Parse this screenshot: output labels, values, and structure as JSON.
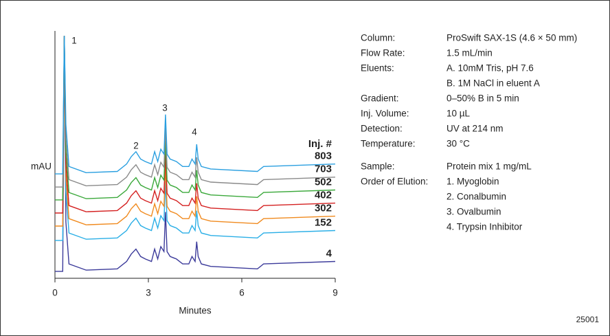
{
  "chart_data": {
    "type": "line",
    "x": [
      0,
      0.25,
      0.3,
      0.35,
      0.45,
      1.0,
      2.0,
      2.3,
      2.45,
      2.6,
      2.75,
      2.9,
      3.1,
      3.2,
      3.3,
      3.4,
      3.5,
      3.55,
      3.6,
      3.7,
      3.9,
      4.1,
      4.3,
      4.4,
      4.5,
      4.55,
      4.6,
      4.7,
      5.0,
      6.5,
      6.7,
      9.0
    ],
    "xlim": [
      0,
      9
    ],
    "xticks": [
      0,
      3,
      6,
      9
    ],
    "ylim": [
      0,
      100
    ],
    "x_label": "Minutes",
    "y_label": "mAU",
    "legend_title": "Inj. #",
    "annotations": [
      "1",
      "2",
      "3",
      "4"
    ],
    "series": [
      {
        "name": "4",
        "color": "#3b3a9a",
        "values": [
          2.8,
          2.8,
          98,
          22.8,
          5.8,
          3.3,
          3.8,
          6.8,
          9.8,
          11.8,
          8.8,
          7.8,
          6.8,
          11.8,
          7.8,
          12.8,
          10.8,
          26.8,
          10.8,
          8.8,
          7.8,
          5.8,
          5.8,
          8.8,
          6.8,
          14.8,
          8.8,
          5.8,
          4.8,
          3.8,
          5.8,
          6.8
        ]
      },
      {
        "name": "152",
        "color": "#29aee6",
        "values": [
          15.3,
          15.3,
          98,
          35.3,
          18.3,
          15.8,
          16.3,
          19.3,
          22.3,
          24.3,
          21.3,
          20.3,
          19.3,
          24.3,
          20.3,
          25.3,
          23.3,
          39.3,
          23.3,
          21.3,
          20.3,
          18.3,
          18.3,
          21.3,
          19.3,
          27.3,
          21.3,
          18.3,
          17.3,
          16.3,
          18.3,
          19.3
        ]
      },
      {
        "name": "302",
        "color": "#f08a1e",
        "values": [
          21.1,
          21.1,
          98,
          41.1,
          24.1,
          21.6,
          22.1,
          25.1,
          28.1,
          30.1,
          27.1,
          26.1,
          25.1,
          30.1,
          26.1,
          31.1,
          29.1,
          45.1,
          29.1,
          27.1,
          26.1,
          24.1,
          24.1,
          27.1,
          25.1,
          33.1,
          27.1,
          24.1,
          23.1,
          22.1,
          24.1,
          25.1
        ]
      },
      {
        "name": "402",
        "color": "#d42020",
        "values": [
          26.4,
          26.4,
          98,
          46.4,
          29.4,
          26.9,
          27.4,
          30.4,
          33.4,
          35.4,
          32.4,
          31.4,
          30.4,
          35.4,
          31.4,
          36.4,
          34.4,
          50.4,
          34.4,
          32.4,
          31.4,
          29.4,
          29.4,
          32.4,
          30.4,
          38.4,
          32.4,
          29.4,
          28.4,
          27.4,
          29.4,
          30.4
        ]
      },
      {
        "name": "502",
        "color": "#3aa83a",
        "values": [
          31.7,
          31.7,
          98,
          51.7,
          34.7,
          32.2,
          32.7,
          35.7,
          38.7,
          40.7,
          37.7,
          36.7,
          35.7,
          40.7,
          36.7,
          41.7,
          39.7,
          55.7,
          39.7,
          37.7,
          36.7,
          34.7,
          34.7,
          37.7,
          35.7,
          43.7,
          37.7,
          34.7,
          33.7,
          32.7,
          34.7,
          35.7
        ]
      },
      {
        "name": "703",
        "color": "#8a8a8a",
        "values": [
          36.9,
          36.9,
          98,
          56.9,
          39.9,
          37.4,
          37.9,
          40.9,
          43.9,
          45.9,
          42.9,
          41.9,
          40.9,
          45.9,
          41.9,
          46.9,
          44.9,
          60.9,
          44.9,
          42.9,
          41.9,
          39.9,
          39.9,
          42.9,
          40.9,
          48.9,
          42.9,
          39.9,
          38.9,
          37.9,
          39.9,
          40.9
        ]
      },
      {
        "name": "803",
        "color": "#2a9fe0",
        "values": [
          42.2,
          42.2,
          98,
          62.2,
          45.2,
          42.7,
          43.2,
          46.2,
          49.2,
          51.2,
          48.2,
          47.2,
          46.2,
          51.2,
          47.2,
          52.2,
          50.2,
          66.2,
          50.2,
          48.2,
          47.2,
          45.2,
          45.2,
          48.2,
          46.2,
          54.2,
          48.2,
          45.2,
          44.2,
          43.2,
          45.2,
          46.2
        ]
      }
    ]
  },
  "method": [
    {
      "label": "Column:",
      "value": [
        "ProSwift SAX-1S (4.6 × 50 mm)"
      ]
    },
    {
      "label": "Flow Rate:",
      "value": [
        "1.5 mL/min"
      ]
    },
    {
      "label": "Eluents:",
      "value": [
        "A. 10mM Tris, pH 7.6",
        "B. 1M NaCl in eluent A"
      ]
    },
    {
      "label": "Gradient:",
      "value": [
        "0–50% B in 5 min"
      ]
    },
    {
      "label": "Inj. Volume:",
      "value": [
        "10 µL"
      ]
    },
    {
      "label": "Detection:",
      "value": [
        "UV at 214 nm"
      ]
    },
    {
      "label": "Temperature:",
      "value": [
        "30 °C"
      ]
    }
  ],
  "sample": [
    {
      "label": "Sample:",
      "value": [
        "Protein mix 1 mg/mL"
      ]
    },
    {
      "label": "Order of Elution:",
      "value": [
        "1. Myoglobin",
        "2. Conalbumin",
        "3. Ovalbumin",
        "4. Trypsin Inhibitor"
      ]
    }
  ],
  "figure_id": "25001"
}
